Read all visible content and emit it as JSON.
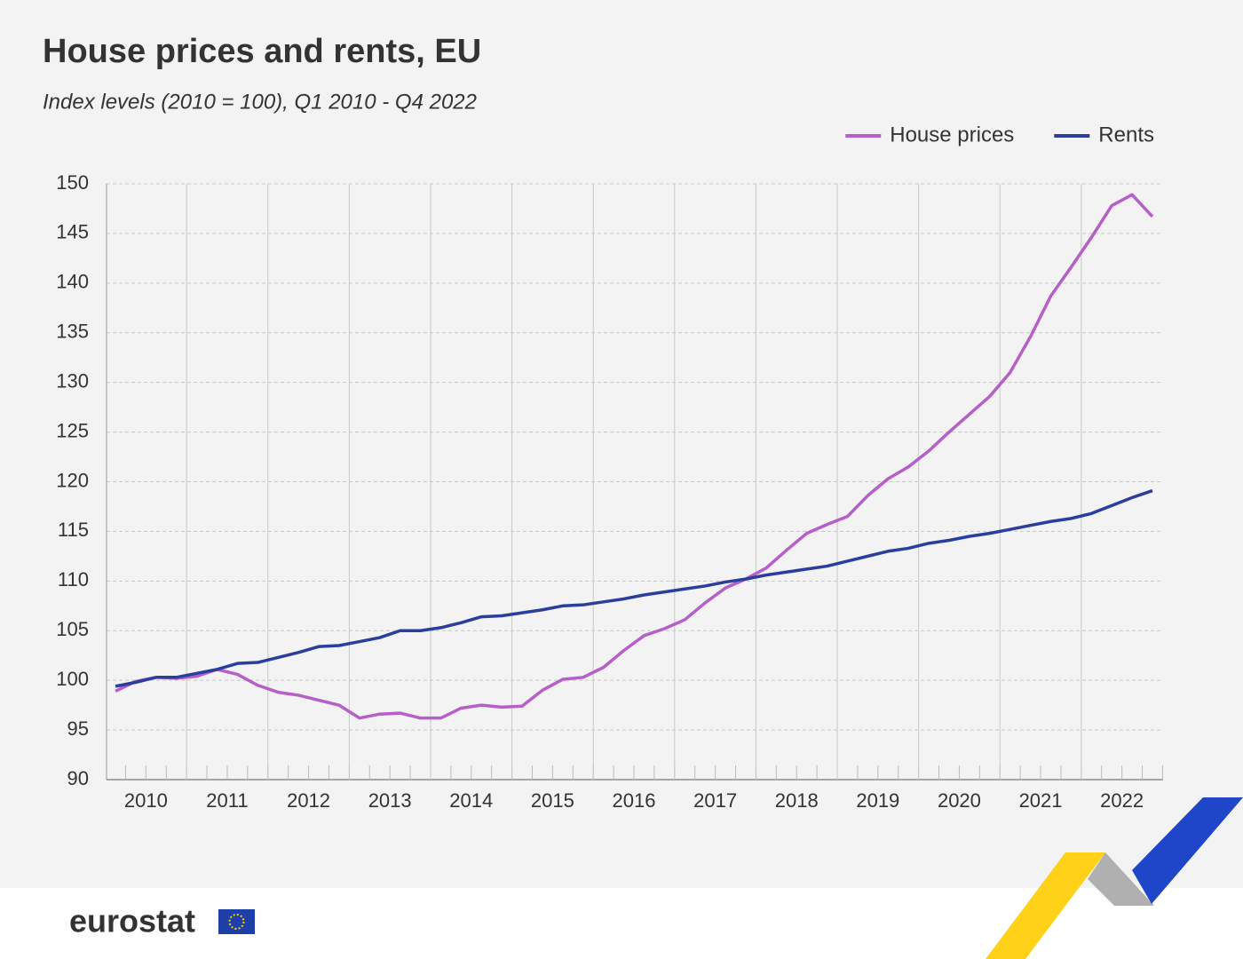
{
  "chart_data": {
    "type": "line",
    "title": "House prices and rents, EU",
    "subtitle": "Index levels (2010 = 100),  Q1 2010 - Q4 2022",
    "categories": [
      "2010",
      null,
      null,
      null,
      "2011",
      null,
      null,
      null,
      "2012",
      null,
      null,
      null,
      "2013",
      null,
      null,
      null,
      "2014",
      null,
      null,
      null,
      "2015",
      null,
      null,
      null,
      "2016",
      null,
      null,
      null,
      "2017",
      null,
      null,
      null,
      "2018",
      null,
      null,
      null,
      "2019",
      null,
      null,
      null,
      "2020",
      null,
      null,
      null,
      "2021",
      null,
      null,
      null,
      "2022",
      null,
      null,
      null
    ],
    "series": [
      {
        "name": "House prices",
        "color": "#b65fc8",
        "values": [
          98.9,
          99.9,
          100.3,
          100.2,
          100.4,
          101.1,
          100.6,
          99.5,
          98.8,
          98.5,
          98.0,
          97.5,
          96.2,
          96.6,
          96.7,
          96.2,
          96.2,
          97.2,
          97.5,
          97.3,
          97.4,
          99.0,
          100.1,
          100.3,
          101.3,
          103.0,
          104.5,
          105.2,
          106.1,
          107.8,
          109.3,
          110.2,
          111.3,
          113.1,
          114.8,
          115.7,
          116.5,
          118.6,
          120.3,
          121.5,
          123.1,
          125.0,
          126.8,
          128.6,
          131.0,
          134.6,
          138.7,
          141.6,
          144.6,
          147.8,
          148.9,
          146.7
        ]
      },
      {
        "name": "Rents",
        "color": "#2b3e9e",
        "values": [
          99.4,
          99.8,
          100.3,
          100.3,
          100.7,
          101.1,
          101.7,
          101.8,
          102.3,
          102.8,
          103.4,
          103.5,
          103.9,
          104.3,
          105.0,
          105.0,
          105.3,
          105.8,
          106.4,
          106.5,
          106.8,
          107.1,
          107.5,
          107.6,
          107.9,
          108.2,
          108.6,
          108.9,
          109.2,
          109.5,
          109.9,
          110.2,
          110.6,
          110.9,
          111.2,
          111.5,
          112.0,
          112.5,
          113.0,
          113.3,
          113.8,
          114.1,
          114.5,
          114.8,
          115.2,
          115.6,
          116.0,
          116.3,
          116.8,
          117.6,
          118.4,
          119.1
        ]
      }
    ],
    "ylim": [
      90,
      150
    ],
    "yticks": [
      90,
      95,
      100,
      105,
      110,
      115,
      120,
      125,
      130,
      135,
      140,
      145,
      150
    ],
    "grid": true,
    "legend": "top-right"
  },
  "footer": {
    "logo": "eurostat"
  }
}
